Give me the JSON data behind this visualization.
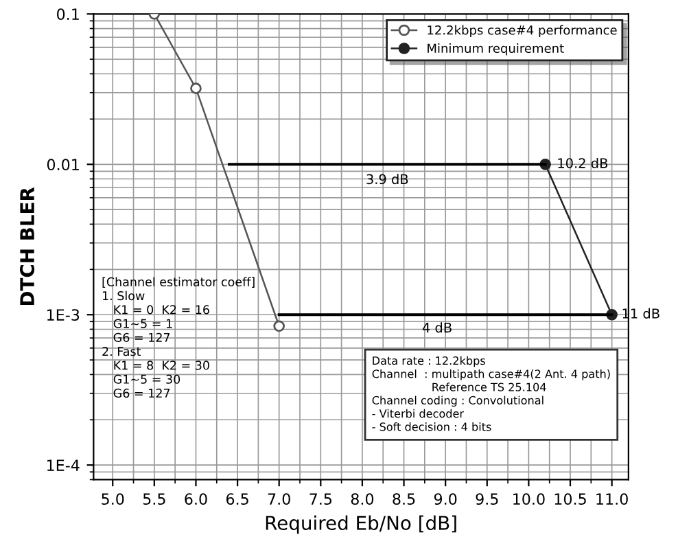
{
  "chart_data": {
    "type": "line",
    "xlabel": "Required Eb/No [dB]",
    "ylabel": "DTCH BLER",
    "log": "y",
    "grid": true,
    "legend": "top right",
    "marker": "circle",
    "xlim": [
      4.77,
      11.2
    ],
    "ylim": [
      8e-05,
      0.1
    ],
    "xticks": [
      {
        "value": 5,
        "label": "5.0"
      },
      {
        "value": 5.5,
        "label": "5.5"
      },
      {
        "value": 6,
        "label": "6.0"
      },
      {
        "value": 6.5,
        "label": "6.5"
      },
      {
        "value": 7,
        "label": "7.0"
      },
      {
        "value": 7.5,
        "label": "7.5"
      },
      {
        "value": 8,
        "label": "8.0"
      },
      {
        "value": 8.5,
        "label": "8.5"
      },
      {
        "value": 9,
        "label": "9.0"
      },
      {
        "value": 9.5,
        "label": "9.5"
      },
      {
        "value": 10,
        "label": "10.0"
      },
      {
        "value": 10.5,
        "label": "10.5"
      },
      {
        "value": 11,
        "label": "11.0"
      }
    ],
    "yticks": [
      {
        "value": 0.0001,
        "label": "1E-4"
      },
      {
        "value": 0.001,
        "label": "1E-3"
      },
      0.01,
      0.1
    ],
    "series": [
      {
        "name": "12.2kbps case#4 performance",
        "color": "#555555",
        "x": [
          5.5,
          6.0,
          7.0
        ],
        "values": [
          0.1,
          0.032,
          0.00084
        ]
      },
      {
        "name": "Minimum requirement",
        "color": "#222222",
        "x": [
          10.2,
          11.0
        ],
        "values": [
          0.01,
          0.001
        ]
      },
      {
        "color": "#000000",
        "x": [
          6.4,
          10.2
        ],
        "values": [
          0.01,
          0.01
        ],
        "marker": "none"
      },
      {
        "color": "#000000",
        "x": [
          7.0,
          11.0
        ],
        "values": [
          0.001,
          0.001
        ],
        "marker": "none"
      }
    ],
    "annotations": [
      {
        "text": "3.9 dB",
        "x": 8.3,
        "y": 0.01
      },
      {
        "text": "10.2 dB",
        "x": 10.2,
        "y": 0.01
      },
      {
        "text": "4 dB",
        "x": 8.9,
        "y": 0.001
      },
      {
        "text": "11 dB",
        "x": 11.0,
        "y": 0.001
      },
      "[Channel estimator coeff]\n1. Slow\n   K1 = 0  K2 = 16\n   G1~5 = 1\n   G6 = 127\n2. Fast\n   K1 = 8  K2 = 30\n   G1~5 = 30\n   G6 = 127",
      "Data rate : 12.2kbps\nChannel  : multipath case#4(2 Ant. 4 path)\n                 Reference TS 25.104\nChannel coding : Convolutional\n- Viterbi decoder\n- Soft decision : 4 bits"
    ]
  }
}
